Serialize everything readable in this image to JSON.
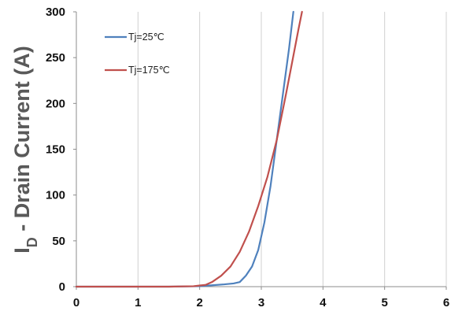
{
  "chart_data": {
    "type": "line",
    "title": "",
    "xlabel": "",
    "ylabel": {
      "main": "I",
      "sub": "D",
      "rest": " - Drain Current (A)"
    },
    "xlim": [
      0,
      6
    ],
    "ylim": [
      0,
      300
    ],
    "x_ticks": [
      "0",
      "1",
      "2",
      "3",
      "4",
      "5",
      "6"
    ],
    "y_ticks": [
      "0",
      "50",
      "100",
      "150",
      "200",
      "250",
      "300"
    ],
    "grid": {
      "vertical": true,
      "horizontal": false
    },
    "legend_position": "top-left",
    "series": [
      {
        "name": "Tj=25℃",
        "color": "#4F81BD",
        "points": [
          [
            0,
            0
          ],
          [
            1.5,
            0
          ],
          [
            2.0,
            0.5
          ],
          [
            2.2,
            1.5
          ],
          [
            2.4,
            2.5
          ],
          [
            2.55,
            3.5
          ],
          [
            2.65,
            5
          ],
          [
            2.75,
            12
          ],
          [
            2.85,
            22
          ],
          [
            2.95,
            40
          ],
          [
            3.05,
            70
          ],
          [
            3.15,
            110
          ],
          [
            3.25,
            160
          ],
          [
            3.35,
            210
          ],
          [
            3.45,
            260
          ],
          [
            3.52,
            300
          ]
        ]
      },
      {
        "name": "Tj=175℃",
        "color": "#C0504D",
        "points": [
          [
            0,
            0
          ],
          [
            1.5,
            0
          ],
          [
            1.9,
            0.5
          ],
          [
            2.1,
            2
          ],
          [
            2.2,
            5
          ],
          [
            2.35,
            12
          ],
          [
            2.5,
            22
          ],
          [
            2.65,
            38
          ],
          [
            2.8,
            60
          ],
          [
            2.95,
            88
          ],
          [
            3.1,
            120
          ],
          [
            3.25,
            160
          ],
          [
            3.4,
            210
          ],
          [
            3.5,
            245
          ],
          [
            3.6,
            280
          ],
          [
            3.66,
            300
          ]
        ]
      }
    ]
  }
}
